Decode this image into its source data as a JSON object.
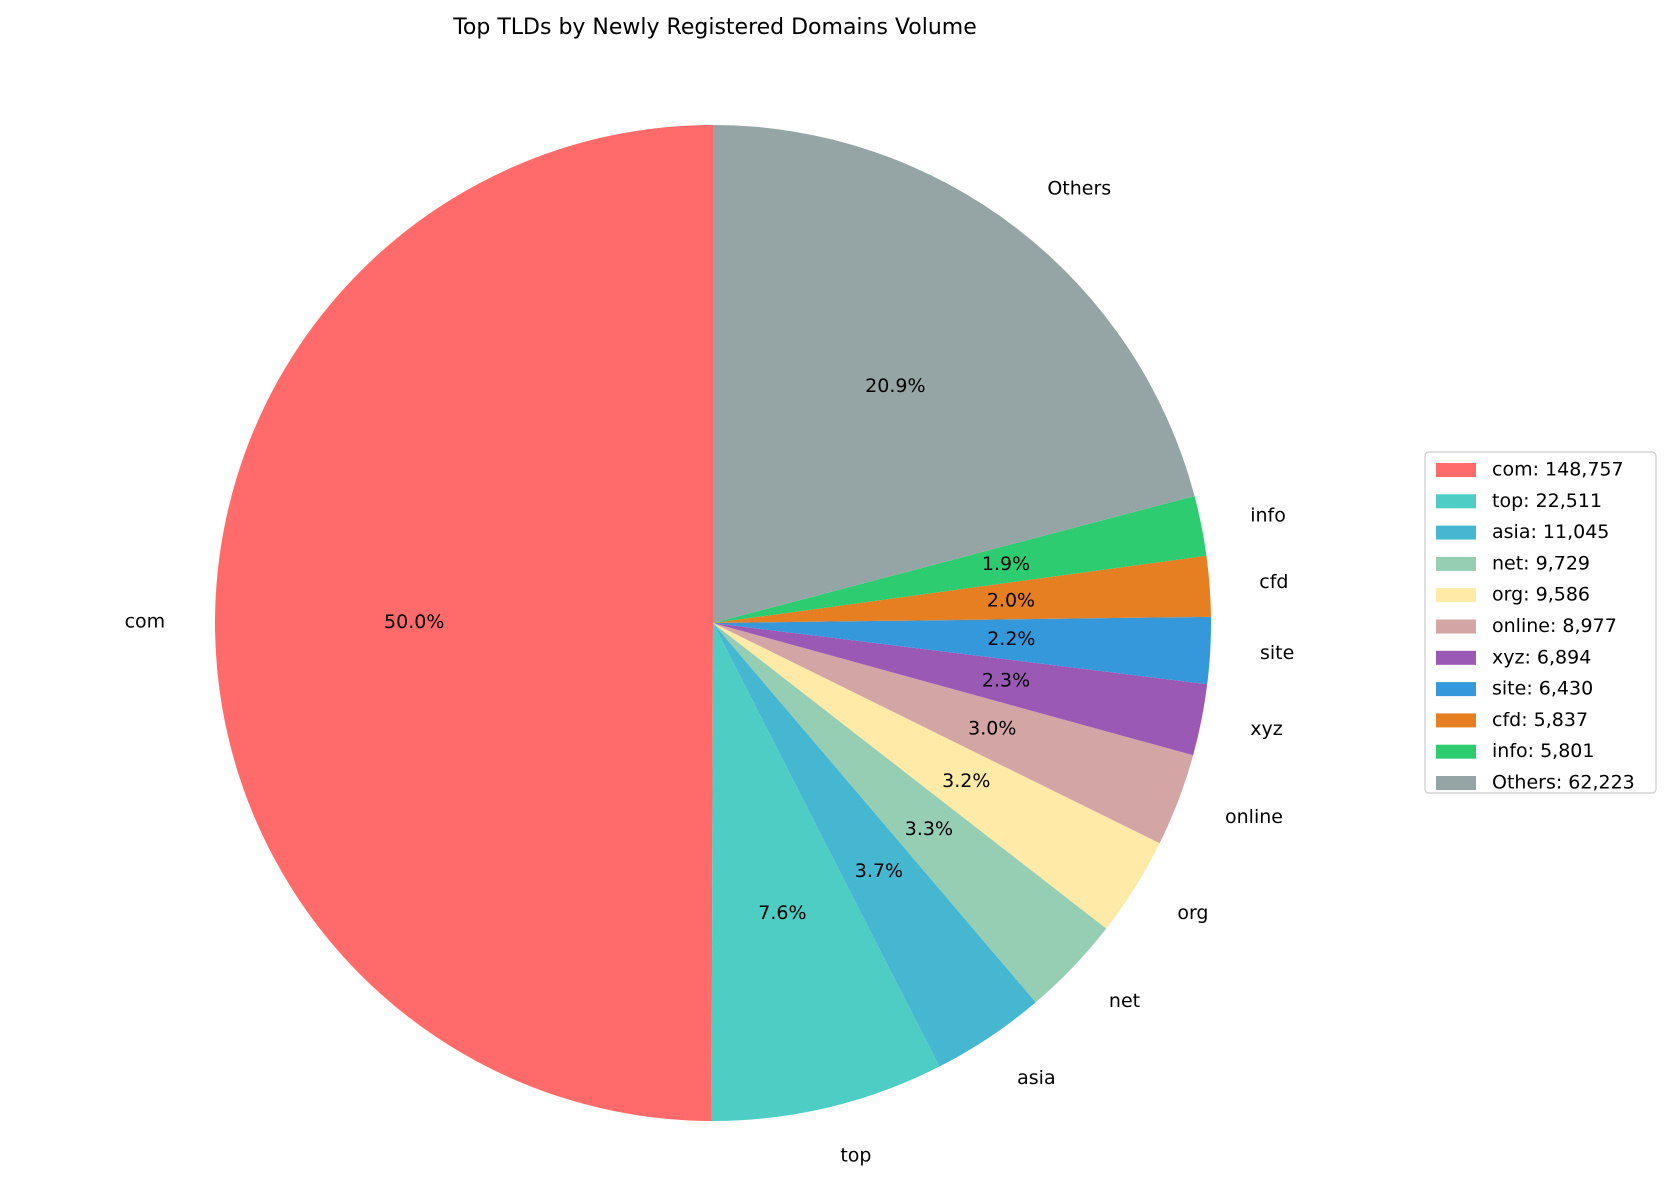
{
  "chart_data": {
    "type": "pie",
    "title": "Top TLDs by Newly Registered Domains Volume",
    "start_angle_deg": 90,
    "direction": "counterclockwise",
    "legend_position": "right",
    "slices": [
      {
        "label": "com",
        "value": 148757,
        "pct_label": "50.0%",
        "legend": "com: 148,757",
        "color": "#ff6b6b"
      },
      {
        "label": "top",
        "value": 22511,
        "pct_label": "7.6%",
        "legend": "top: 22,511",
        "color": "#4ecdc4"
      },
      {
        "label": "asia",
        "value": 11045,
        "pct_label": "3.7%",
        "legend": "asia: 11,045",
        "color": "#45b7d1"
      },
      {
        "label": "net",
        "value": 9729,
        "pct_label": "3.3%",
        "legend": "net: 9,729",
        "color": "#96ceb4"
      },
      {
        "label": "org",
        "value": 9586,
        "pct_label": "3.2%",
        "legend": "org: 9,586",
        "color": "#ffeaa7"
      },
      {
        "label": "online",
        "value": 8977,
        "pct_label": "3.0%",
        "legend": "online: 8,977",
        "color": "#d4a5a5"
      },
      {
        "label": "xyz",
        "value": 6894,
        "pct_label": "2.3%",
        "legend": "xyz: 6,894",
        "color": "#9b59b6"
      },
      {
        "label": "site",
        "value": 6430,
        "pct_label": "2.2%",
        "legend": "site: 6,430",
        "color": "#3498db"
      },
      {
        "label": "cfd",
        "value": 5837,
        "pct_label": "2.0%",
        "legend": "cfd: 5,837",
        "color": "#e67e22"
      },
      {
        "label": "info",
        "value": 5801,
        "pct_label": "1.9%",
        "legend": "info: 5,801",
        "color": "#2ecc71"
      },
      {
        "label": "Others",
        "value": 62223,
        "pct_label": "20.9%",
        "legend": "Others: 62,223",
        "color": "#95a5a6"
      }
    ]
  }
}
